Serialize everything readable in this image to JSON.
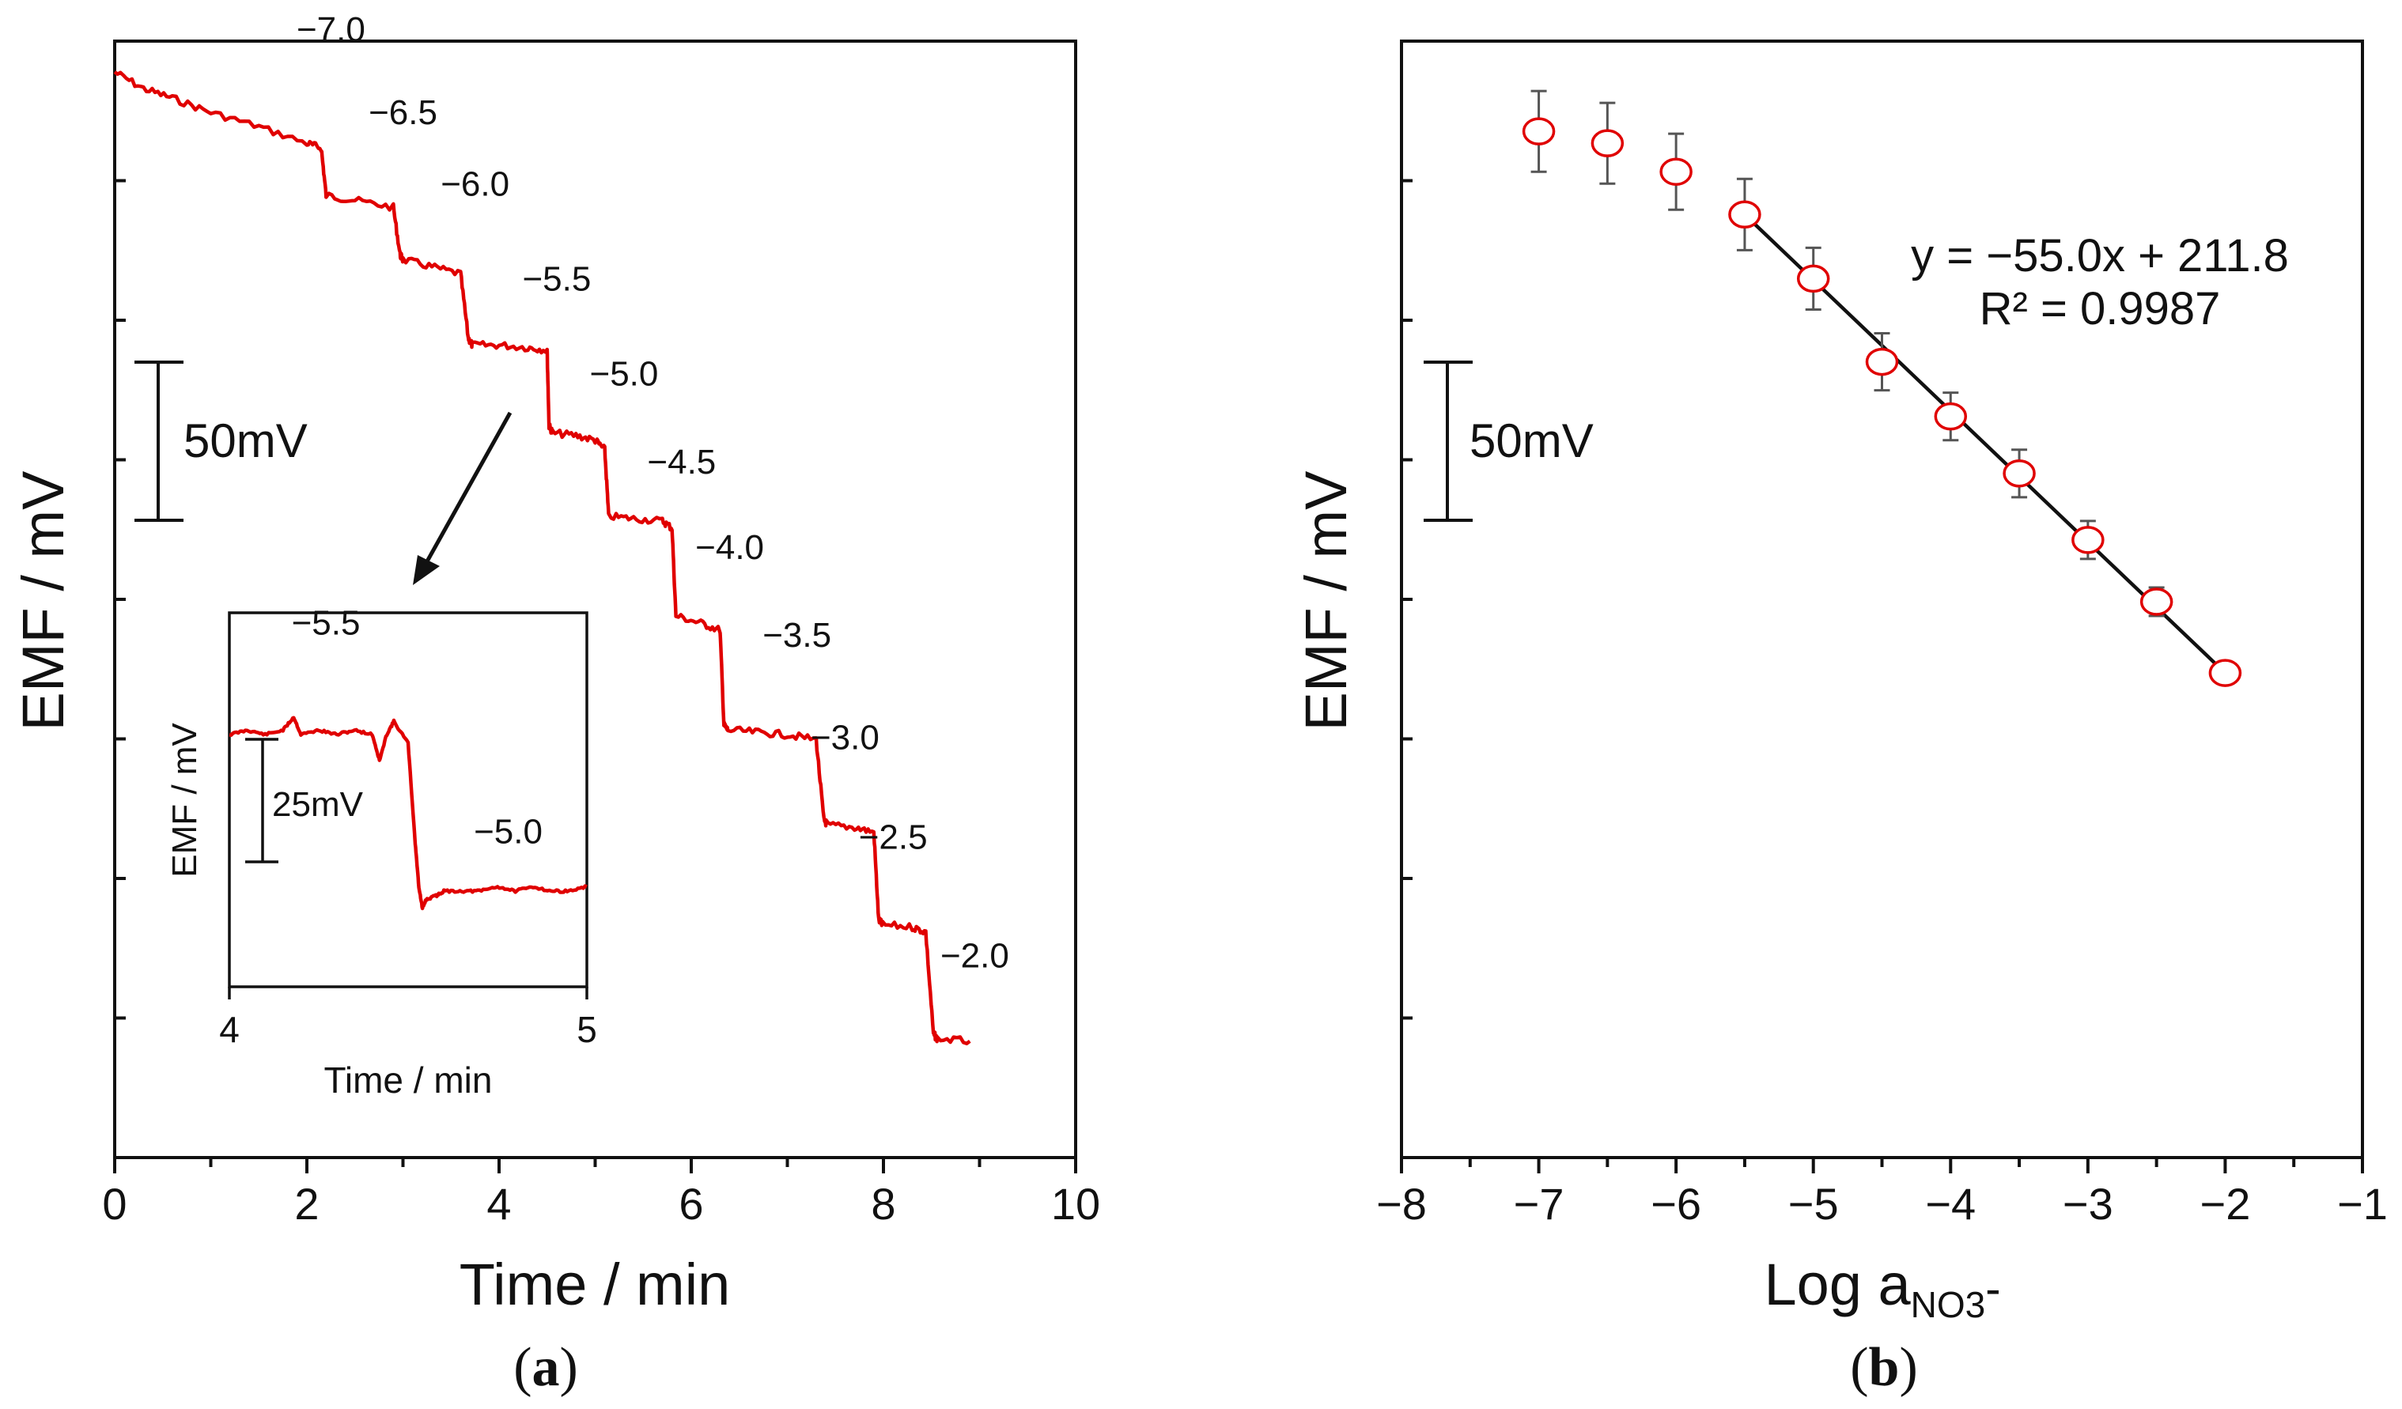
{
  "chart_data": [
    {
      "id": "a",
      "type": "line",
      "panel_label": "(a)",
      "panel_letter": "a",
      "xlabel": "Time / min",
      "ylabel": "EMF / mV",
      "xlim": [
        0,
        10
      ],
      "xticks": [
        "0",
        "2",
        "4",
        "6",
        "8",
        "10"
      ],
      "y_unit": "mV (relative)",
      "ylim": [
        -460,
        10
      ],
      "y_minor_ticks": 7,
      "grid": false,
      "scale_bar": {
        "label": "50mV",
        "value": 50
      },
      "series": [
        {
          "name": "EMF response",
          "color": "#e00000",
          "x": [
            0,
            0.3,
            0.6,
            1.0,
            1.5,
            2.0,
            2.15,
            2.2,
            2.5,
            2.9,
            2.97,
            3.0,
            3.3,
            3.6,
            3.68,
            3.72,
            4.0,
            4.3,
            4.5,
            4.52,
            4.56,
            4.8,
            5.0,
            5.1,
            5.14,
            5.4,
            5.7,
            5.8,
            5.84,
            6.1,
            6.3,
            6.34,
            6.38,
            6.7,
            7.0,
            7.3,
            7.38,
            7.42,
            7.7,
            7.9,
            7.95,
            7.99,
            8.3,
            8.44,
            8.52,
            8.56,
            8.9
          ],
          "y": [
            -3,
            -10,
            -14,
            -20,
            -26,
            -33,
            -35,
            -55,
            -57,
            -60,
            -80,
            -82,
            -85,
            -88,
            -115,
            -118,
            -118,
            -119,
            -120,
            -152,
            -155,
            -156,
            -158,
            -162,
            -190,
            -191,
            -192,
            -195,
            -232,
            -235,
            -238,
            -278,
            -280,
            -281,
            -282,
            -284,
            -318,
            -320,
            -321,
            -323,
            -360,
            -362,
            -363,
            -365,
            -408,
            -410,
            -411
          ]
        }
      ],
      "annotations": [
        "−7.0",
        "−6.5",
        "−6.0",
        "−5.5",
        "−5.0",
        "−4.5",
        "−4.0",
        "−3.5",
        "−3.0",
        "−2.5",
        "−2.0"
      ],
      "annotation_x": [
        2.25,
        3.0,
        3.75,
        4.6,
        5.3,
        5.9,
        6.4,
        7.1,
        7.6,
        8.1,
        8.95
      ],
      "annotation_y": [
        10,
        -25,
        -55,
        -95,
        -135,
        -172,
        -208,
        -245,
        -288,
        -330,
        -380
      ],
      "inset": {
        "type": "line",
        "xlabel": "Time / min",
        "ylabel": "EMF / mV",
        "xlim": [
          4,
          5
        ],
        "xticks": [
          "4",
          "5"
        ],
        "ylim": [
          -78,
          8
        ],
        "scale_bar": {
          "label": "25mV",
          "value": 25
        },
        "annotations": [
          "−5.5",
          "−5.0"
        ],
        "annotation_x": [
          4.27,
          4.78
        ],
        "annotation_y": [
          3,
          -45
        ],
        "series": [
          {
            "name": "EMF response (zoom)",
            "color": "#e00000",
            "x": [
              4.0,
              4.05,
              4.1,
              4.15,
              4.18,
              4.2,
              4.25,
              4.3,
              4.35,
              4.4,
              4.42,
              4.44,
              4.46,
              4.5,
              4.52,
              4.53,
              4.54,
              4.55,
              4.58,
              4.6,
              4.65,
              4.7,
              4.75,
              4.8,
              4.85,
              4.9,
              4.95,
              5.0
            ],
            "y": [
              -20,
              -19,
              -20,
              -19,
              -16,
              -20,
              -19,
              -20,
              -19,
              -20,
              -26,
              -20,
              -17,
              -22,
              -45,
              -55,
              -60,
              -58,
              -57,
              -56,
              -56,
              -56,
              -55,
              -56,
              -55,
              -56,
              -56,
              -55
            ]
          }
        ]
      }
    },
    {
      "id": "b",
      "type": "scatter",
      "panel_label": "(b)",
      "panel_letter": "b",
      "xlabel": "Log a",
      "xlabel_sub": "NO3",
      "xlabel_sup": "-",
      "ylabel": "EMF / mV",
      "xlim": [
        -8,
        -1
      ],
      "xticks": [
        "−8",
        "−7",
        "−6",
        "−5",
        "−4",
        "−3",
        "−2",
        "−1"
      ],
      "ylim": [
        -460,
        10
      ],
      "y_minor_ticks": 7,
      "grid": false,
      "scale_bar": {
        "label": "50mV",
        "value": 50
      },
      "series": [
        {
          "name": "EMF",
          "marker": "open-circle",
          "color": "#e00000",
          "x": [
            -7.0,
            -6.5,
            -6.0,
            -5.5,
            -5.0,
            -4.5,
            -4.0,
            -3.5,
            -3.0,
            -2.5,
            -2.0
          ],
          "y": [
            -28,
            -33,
            -45,
            -63,
            -90,
            -125,
            -148,
            -172,
            -200,
            -226,
            -256
          ],
          "error": [
            17,
            17,
            16,
            15,
            13,
            12,
            10,
            10,
            8,
            6,
            3
          ]
        }
      ],
      "fit": {
        "equation": "y = −55.0x + 211.8",
        "r2": "R² = 0.9987",
        "x": [
          -5.5,
          -2.0
        ],
        "y": [
          -63,
          -256
        ]
      }
    }
  ]
}
